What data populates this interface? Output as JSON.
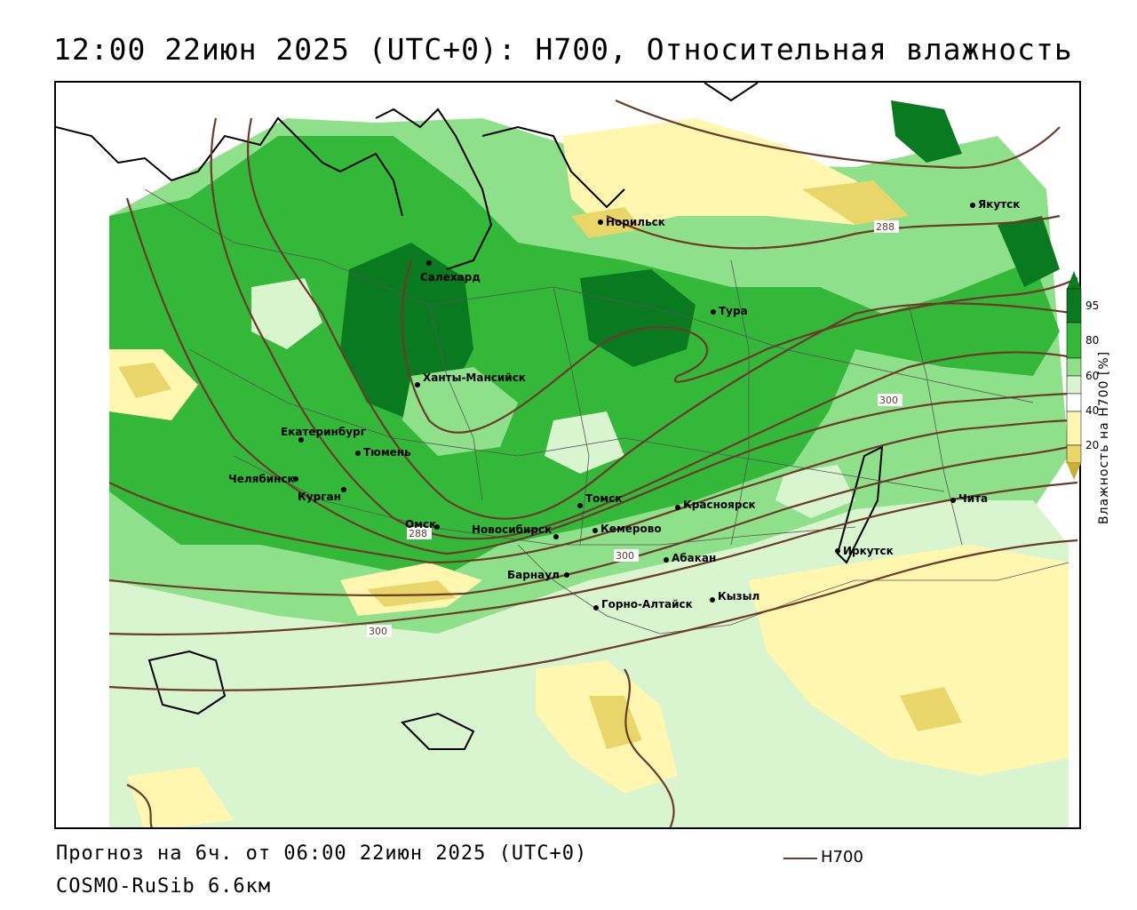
{
  "title": "12:00 22июн 2025 (UTC+0): H700, Относительная влажность",
  "footer": {
    "forecast": "Прогноз на 6ч. от 06:00 22июн 2025 (UTC+0)",
    "model": "COSMO-RuSib 6.6км",
    "line_legend": "H700"
  },
  "legend": {
    "title": "Влажность на H700 [%]",
    "ticks": [
      "95",
      "80",
      "60",
      "40",
      "20"
    ],
    "colors": {
      "c95": "#0a7a20",
      "c80": "#34b83a",
      "c60": "#8fe08a",
      "c50": "#d8f5cf",
      "c40": "#fff6b0",
      "c20": "#e8d66a",
      "c10": "#c8b030"
    }
  },
  "cities": [
    {
      "name": "Норильск"
    },
    {
      "name": "Якутск"
    },
    {
      "name": "Салехард"
    },
    {
      "name": "Тура"
    },
    {
      "name": "Ханты-Мансийск"
    },
    {
      "name": "Екатеринбург"
    },
    {
      "name": "Тюмень"
    },
    {
      "name": "Челябинск"
    },
    {
      "name": "Курган"
    },
    {
      "name": "Омск"
    },
    {
      "name": "Томск"
    },
    {
      "name": "Красноярск"
    },
    {
      "name": "Новосибирск"
    },
    {
      "name": "Кемерово"
    },
    {
      "name": "Абакан"
    },
    {
      "name": "Барнаул"
    },
    {
      "name": "Горно-Алтайск"
    },
    {
      "name": "Кызыл"
    },
    {
      "name": "Иркутск"
    },
    {
      "name": "Чита"
    }
  ],
  "isoline_labels": [
    "288",
    "300",
    "288",
    "300",
    "300"
  ],
  "line_color": "#6b3a2a"
}
